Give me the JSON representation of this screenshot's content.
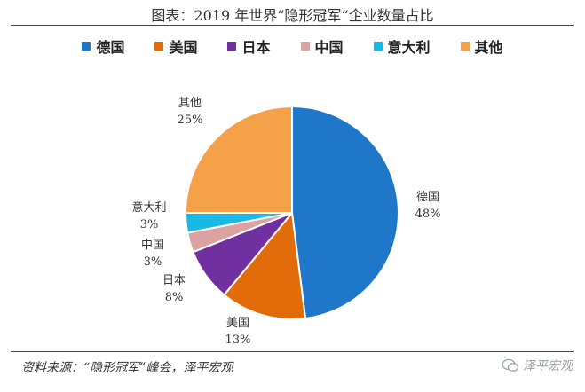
{
  "header": {
    "title": "图表：2019 年世界“隐形冠军“企业数量占比"
  },
  "chart_data": {
    "type": "pie",
    "title": "图表：2019 年世界“隐形冠军“企业数量占比",
    "legend_position": "top",
    "slices": [
      {
        "name": "德国",
        "value": 48,
        "label": "48%",
        "color": "#1f77c9"
      },
      {
        "name": "美国",
        "value": 13,
        "label": "13%",
        "color": "#e36c0a"
      },
      {
        "name": "日本",
        "value": 8,
        "label": "8%",
        "color": "#7030a0"
      },
      {
        "name": "中国",
        "value": 3,
        "label": "3%",
        "color": "#dca2a2"
      },
      {
        "name": "意大利",
        "value": 3,
        "label": "3%",
        "color": "#19b8e6"
      },
      {
        "name": "其他",
        "value": 25,
        "label": "25%",
        "color": "#f4a14a"
      }
    ]
  },
  "footer": {
    "source": "资料来源：“隐形冠军”峰会，泽平宏观",
    "watermark": "泽平宏观"
  }
}
